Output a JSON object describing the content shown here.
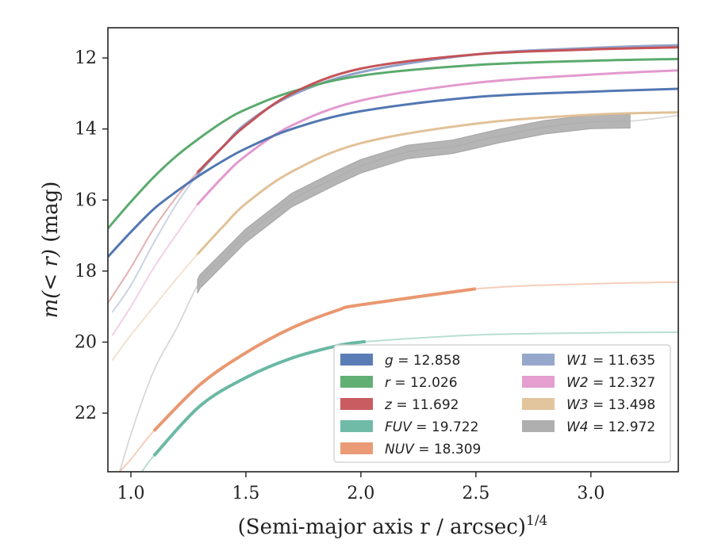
{
  "chart_data": {
    "type": "line",
    "xlabel": "(Semi-major axis r / arcsec)",
    "xlabel_superscript": "1/4",
    "ylabel_prefix": "m(< r)",
    "ylabel_unit": " (mag)",
    "xlim": [
      0.9,
      3.38
    ],
    "ylim": [
      23.65,
      11.15
    ],
    "y_inverted": true,
    "grid": false,
    "legend_position": "lower-right",
    "xticks": [
      1.0,
      1.5,
      2.0,
      2.5,
      3.0
    ],
    "xtick_labels": [
      "1.0",
      "1.5",
      "2.0",
      "2.5",
      "3.0"
    ],
    "yticks": [
      12,
      14,
      16,
      18,
      20,
      22
    ],
    "ytick_labels": [
      "12",
      "14",
      "16",
      "18",
      "20",
      "22"
    ],
    "series": [
      {
        "name": "g",
        "label": "g = 12.858",
        "color": "#4c72b0",
        "band_start": 0.9,
        "band_end": 3.38,
        "points": [
          [
            0.9,
            17.6
          ],
          [
            1.0,
            16.9
          ],
          [
            1.1,
            16.25
          ],
          [
            1.2,
            15.75
          ],
          [
            1.3,
            15.3
          ],
          [
            1.4,
            14.9
          ],
          [
            1.5,
            14.55
          ],
          [
            1.7,
            14.0
          ],
          [
            2.0,
            13.5
          ],
          [
            2.5,
            13.1
          ],
          [
            3.0,
            12.95
          ],
          [
            3.38,
            12.87
          ]
        ]
      },
      {
        "name": "r",
        "label": "r = 12.026",
        "color": "#55a868",
        "band_start": 0.9,
        "band_end": 3.38,
        "points": [
          [
            0.9,
            16.8
          ],
          [
            1.0,
            16.05
          ],
          [
            1.1,
            15.35
          ],
          [
            1.2,
            14.75
          ],
          [
            1.3,
            14.25
          ],
          [
            1.4,
            13.8
          ],
          [
            1.5,
            13.45
          ],
          [
            1.7,
            12.95
          ],
          [
            2.0,
            12.5
          ],
          [
            2.5,
            12.2
          ],
          [
            3.0,
            12.08
          ],
          [
            3.38,
            12.03
          ]
        ]
      },
      {
        "name": "z",
        "label": "z = 11.692",
        "color": "#c44e52",
        "band_start": 1.29,
        "band_end": 3.38,
        "points": [
          [
            0.9,
            18.9
          ],
          [
            1.0,
            17.9
          ],
          [
            1.1,
            16.8
          ],
          [
            1.2,
            15.9
          ],
          [
            1.3,
            15.15
          ],
          [
            1.4,
            14.5
          ],
          [
            1.5,
            13.9
          ],
          [
            1.7,
            13.0
          ],
          [
            2.0,
            12.3
          ],
          [
            2.5,
            11.9
          ],
          [
            3.0,
            11.76
          ],
          [
            3.38,
            11.7
          ]
        ]
      },
      {
        "name": "FUV",
        "label": "FUV = 19.722",
        "color": "#64b5a0",
        "band_start": 1.1,
        "band_end": 2.02,
        "points": [
          [
            0.9,
            24.5
          ],
          [
            1.0,
            24.05
          ],
          [
            1.1,
            23.2
          ],
          [
            1.3,
            21.8
          ],
          [
            1.5,
            21.0
          ],
          [
            1.7,
            20.45
          ],
          [
            1.9,
            20.1
          ],
          [
            2.0,
            20.0
          ],
          [
            2.5,
            19.8
          ],
          [
            3.0,
            19.74
          ],
          [
            3.38,
            19.72
          ]
        ]
      },
      {
        "name": "NUV",
        "label": "NUV = 18.309",
        "color": "#e8936a",
        "band_start": 1.1,
        "band_end": 2.5,
        "points": [
          [
            0.9,
            24.0
          ],
          [
            1.0,
            23.3
          ],
          [
            1.1,
            22.5
          ],
          [
            1.3,
            21.2
          ],
          [
            1.5,
            20.3
          ],
          [
            1.7,
            19.6
          ],
          [
            1.9,
            19.1
          ],
          [
            2.0,
            18.95
          ],
          [
            2.5,
            18.5
          ],
          [
            3.0,
            18.36
          ],
          [
            3.38,
            18.31
          ]
        ]
      },
      {
        "name": "W1",
        "label": "W1 = 11.635",
        "color": "#8c9fc6",
        "band_start": 1.29,
        "band_end": 3.38,
        "points": [
          [
            0.92,
            19.15
          ],
          [
            1.0,
            18.4
          ],
          [
            1.1,
            17.2
          ],
          [
            1.2,
            16.1
          ],
          [
            1.3,
            15.2
          ],
          [
            1.4,
            14.5
          ],
          [
            1.5,
            13.85
          ],
          [
            1.7,
            13.05
          ],
          [
            2.0,
            12.4
          ],
          [
            2.5,
            11.9
          ],
          [
            3.0,
            11.72
          ],
          [
            3.38,
            11.64
          ]
        ]
      },
      {
        "name": "W2",
        "label": "W2 = 12.327",
        "color": "#e296cc",
        "band_start": 1.29,
        "band_end": 3.38,
        "points": [
          [
            0.92,
            19.8
          ],
          [
            1.0,
            19.0
          ],
          [
            1.1,
            17.9
          ],
          [
            1.2,
            16.95
          ],
          [
            1.3,
            16.05
          ],
          [
            1.4,
            15.35
          ],
          [
            1.5,
            14.75
          ],
          [
            1.7,
            13.9
          ],
          [
            2.0,
            13.2
          ],
          [
            2.5,
            12.7
          ],
          [
            3.0,
            12.47
          ],
          [
            3.38,
            12.35
          ]
        ]
      },
      {
        "name": "W3",
        "label": "W3 = 13.498",
        "color": "#dfbf95",
        "band_start": 1.29,
        "band_end": 3.38,
        "points": [
          [
            0.92,
            20.5
          ],
          [
            1.0,
            19.8
          ],
          [
            1.1,
            19.0
          ],
          [
            1.2,
            18.2
          ],
          [
            1.3,
            17.45
          ],
          [
            1.4,
            16.75
          ],
          [
            1.5,
            16.1
          ],
          [
            1.7,
            15.2
          ],
          [
            2.0,
            14.4
          ],
          [
            2.5,
            13.85
          ],
          [
            3.0,
            13.6
          ],
          [
            3.38,
            13.53
          ]
        ]
      },
      {
        "name": "W4",
        "label": "W4 = 12.972",
        "color": "#a8a8a8",
        "band_start": 1.29,
        "band_end": 3.17,
        "band_width": 0.38,
        "points": [
          [
            0.9,
            24.8
          ],
          [
            1.0,
            22.6
          ],
          [
            1.1,
            20.8
          ],
          [
            1.2,
            19.6
          ],
          [
            1.3,
            18.3
          ],
          [
            1.4,
            17.65
          ],
          [
            1.5,
            17.0
          ],
          [
            1.7,
            16.0
          ],
          [
            1.9,
            15.35
          ],
          [
            2.0,
            15.05
          ],
          [
            2.2,
            14.65
          ],
          [
            2.4,
            14.5
          ],
          [
            2.5,
            14.35
          ],
          [
            2.6,
            14.2
          ],
          [
            2.8,
            13.95
          ],
          [
            3.0,
            13.8
          ],
          [
            3.17,
            13.78
          ],
          [
            3.38,
            13.62
          ]
        ]
      }
    ]
  }
}
